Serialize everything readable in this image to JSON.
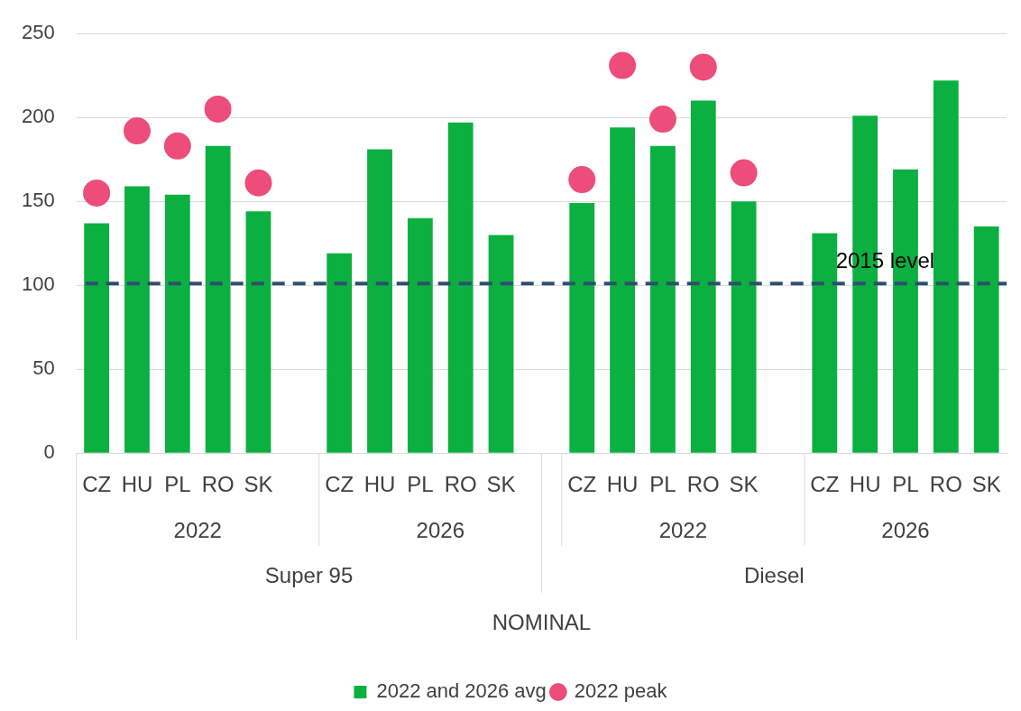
{
  "chart_data": {
    "type": "bar",
    "categories": [
      "CZ",
      "HU",
      "PL",
      "RO",
      "SK",
      null,
      "CZ",
      "HU",
      "PL",
      "RO",
      "SK",
      null,
      "CZ",
      "HU",
      "PL",
      "RO",
      "SK",
      null,
      "CZ",
      "HU",
      "PL",
      "RO",
      "SK"
    ],
    "series": [
      {
        "name": "2022 and 2026 avg",
        "color": "#0bb040",
        "values": [
          137,
          159,
          154,
          183,
          144,
          null,
          119,
          181,
          140,
          197,
          130,
          null,
          149,
          194,
          183,
          210,
          150,
          null,
          131,
          201,
          169,
          222,
          135
        ]
      },
      {
        "name": "2022 peak",
        "type": "scatter",
        "color": "#ec4d7a",
        "values": [
          155,
          192,
          183,
          205,
          161,
          null,
          null,
          null,
          null,
          null,
          null,
          null,
          163,
          231,
          199,
          230,
          167,
          null,
          null,
          null,
          null,
          null,
          null
        ]
      }
    ],
    "ylim": [
      0,
      250
    ],
    "yticks": [
      0,
      50,
      100,
      150,
      200,
      250
    ],
    "grid": "y",
    "legend": "bottom",
    "marker": "circle",
    "ref_lines": [
      {
        "axis": "y",
        "value": 101,
        "label": "2015 level",
        "color": "#2f4f6f",
        "line_style": "dashed"
      }
    ],
    "annotations": [
      "2022",
      "2026",
      "2022",
      "2026",
      "Super 95",
      "Diesel",
      "NOMINAL"
    ]
  }
}
